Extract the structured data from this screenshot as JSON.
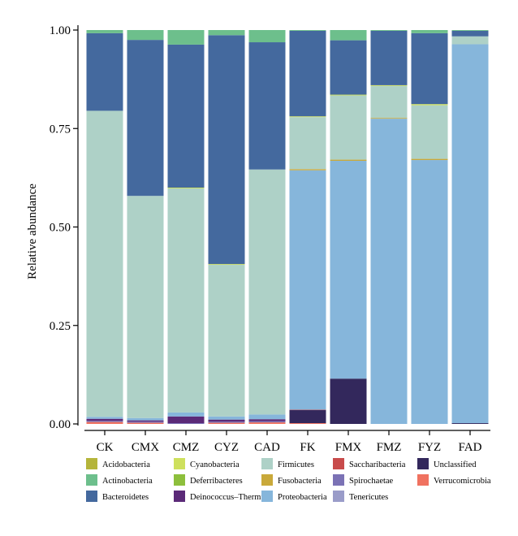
{
  "chart_data": {
    "type": "bar",
    "stacked": true,
    "ylabel": "Relative abundance",
    "xlabel": "",
    "ylim": [
      0,
      1
    ],
    "yticks": [
      "0.00",
      "0.25",
      "0.50",
      "0.75",
      "1.00"
    ],
    "categories": [
      "CK",
      "CMX",
      "CMZ",
      "CYZ",
      "CAD",
      "FK",
      "FMX",
      "FMZ",
      "FYZ",
      "FAD"
    ],
    "legend_position": "bottom",
    "series": [
      {
        "name": "Acidobacteria",
        "color": "#b5b53b",
        "values": [
          0,
          0,
          0,
          0,
          0,
          0,
          0,
          0,
          0,
          0
        ]
      },
      {
        "name": "Actinobacteria",
        "color": "#6dbf8c",
        "values": [
          0.008,
          0.025,
          0.037,
          0.013,
          0.031,
          0.002,
          0.026,
          0.002,
          0.008,
          0.002
        ]
      },
      {
        "name": "Bacteroidetes",
        "color": "#44699e",
        "values": [
          0.197,
          0.396,
          0.363,
          0.581,
          0.323,
          0.217,
          0.138,
          0.138,
          0.18,
          0.014
        ]
      },
      {
        "name": "Cyanobacteria",
        "color": "#cee05d",
        "values": [
          0,
          0,
          0.002,
          0.002,
          0,
          0.002,
          0.002,
          0.002,
          0.003,
          0
        ]
      },
      {
        "name": "Deferribacteres",
        "color": "#8dbf3c",
        "values": [
          0,
          0,
          0,
          0,
          0,
          0,
          0,
          0,
          0,
          0
        ]
      },
      {
        "name": "Deinococcus–Thermus",
        "color": "#5b2a78",
        "values": [
          0.005,
          0.003,
          0.017,
          0.005,
          0.005,
          0,
          0,
          0,
          0,
          0
        ]
      },
      {
        "name": "Firmicutes",
        "color": "#aed1c7",
        "values": [
          0.777,
          0.564,
          0.569,
          0.385,
          0.622,
          0.132,
          0.163,
          0.081,
          0.136,
          0.02
        ]
      },
      {
        "name": "Fusobacteria",
        "color": "#c9a93a",
        "values": [
          0,
          0,
          0,
          0,
          0,
          0.003,
          0.003,
          0.002,
          0.003,
          0
        ]
      },
      {
        "name": "Proteobacteria",
        "color": "#86b6db",
        "values": [
          0.005,
          0.006,
          0.01,
          0.008,
          0.012,
          0.608,
          0.553,
          0.775,
          0.67,
          0.962
        ]
      },
      {
        "name": "Saccharibacteria",
        "color": "#c84b4b",
        "values": [
          0,
          0,
          0,
          0,
          0,
          0.001,
          0,
          0,
          0,
          0
        ]
      },
      {
        "name": "Spirochaetae",
        "color": "#7b72b5",
        "values": [
          0.003,
          0.003,
          0.002,
          0.003,
          0.003,
          0,
          0,
          0,
          0,
          0
        ]
      },
      {
        "name": "Tenericutes",
        "color": "#9a9cc9",
        "values": [
          0,
          0,
          0,
          0,
          0,
          0,
          0,
          0,
          0,
          0
        ]
      },
      {
        "name": "Unclassified",
        "color": "#33285c",
        "values": [
          0,
          0,
          0,
          0,
          0,
          0.033,
          0.115,
          0,
          0,
          0.002
        ]
      },
      {
        "name": "Verrucomicrobia",
        "color": "#f07260",
        "values": [
          0.005,
          0.003,
          0,
          0.003,
          0.004,
          0.002,
          0,
          0,
          0,
          0
        ]
      }
    ],
    "stack_order_bottom_to_top": [
      "Verrucomicrobia",
      "Spirochaetae",
      "Deinococcus–Thermus",
      "Unclassified",
      "Saccharibacteria",
      "Proteobacteria",
      "Fusobacteria",
      "Firmicutes",
      "Cyanobacteria",
      "Bacteroidetes",
      "Actinobacteria",
      "Acidobacteria",
      "Deferribacteres",
      "Tenericutes"
    ]
  }
}
